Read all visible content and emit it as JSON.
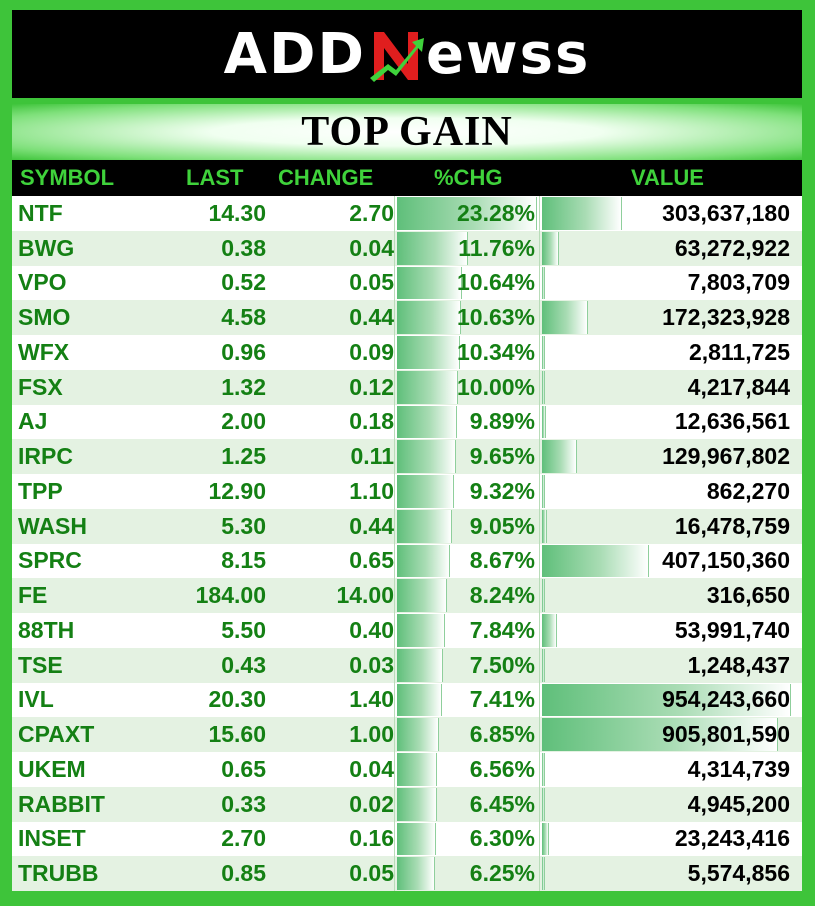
{
  "brand": {
    "logo_text_left": "ADD",
    "logo_text_right": "ewss",
    "logo_mark": "N-arrow-icon"
  },
  "title": "TOP GAIN",
  "headers": {
    "symbol": "SYMBOL",
    "last": "LAST",
    "change": "CHANGE",
    "pct": "%CHG",
    "value": "VALUE"
  },
  "colors": {
    "brand_green": "#3ec43a",
    "text_green": "#148014",
    "header_bg": "#000000"
  },
  "value_max": 954243660,
  "pct_max": 23.28,
  "rows": [
    {
      "symbol": "NTF",
      "last": "14.30",
      "change": "2.70",
      "pct": "23.28%",
      "pct_num": 23.28,
      "value": "303,637,180",
      "value_num": 303637180
    },
    {
      "symbol": "BWG",
      "last": "0.38",
      "change": "0.04",
      "pct": "11.76%",
      "pct_num": 11.76,
      "value": "63,272,922",
      "value_num": 63272922
    },
    {
      "symbol": "VPO",
      "last": "0.52",
      "change": "0.05",
      "pct": "10.64%",
      "pct_num": 10.64,
      "value": "7,803,709",
      "value_num": 7803709
    },
    {
      "symbol": "SMO",
      "last": "4.58",
      "change": "0.44",
      "pct": "10.63%",
      "pct_num": 10.63,
      "value": "172,323,928",
      "value_num": 172323928
    },
    {
      "symbol": "WFX",
      "last": "0.96",
      "change": "0.09",
      "pct": "10.34%",
      "pct_num": 10.34,
      "value": "2,811,725",
      "value_num": 2811725
    },
    {
      "symbol": "FSX",
      "last": "1.32",
      "change": "0.12",
      "pct": "10.00%",
      "pct_num": 10.0,
      "value": "4,217,844",
      "value_num": 4217844
    },
    {
      "symbol": "AJ",
      "last": "2.00",
      "change": "0.18",
      "pct": "9.89%",
      "pct_num": 9.89,
      "value": "12,636,561",
      "value_num": 12636561
    },
    {
      "symbol": "IRPC",
      "last": "1.25",
      "change": "0.11",
      "pct": "9.65%",
      "pct_num": 9.65,
      "value": "129,967,802",
      "value_num": 129967802
    },
    {
      "symbol": "TPP",
      "last": "12.90",
      "change": "1.10",
      "pct": "9.32%",
      "pct_num": 9.32,
      "value": "862,270",
      "value_num": 862270
    },
    {
      "symbol": "WASH",
      "last": "5.30",
      "change": "0.44",
      "pct": "9.05%",
      "pct_num": 9.05,
      "value": "16,478,759",
      "value_num": 16478759
    },
    {
      "symbol": "SPRC",
      "last": "8.15",
      "change": "0.65",
      "pct": "8.67%",
      "pct_num": 8.67,
      "value": "407,150,360",
      "value_num": 407150360
    },
    {
      "symbol": "FE",
      "last": "184.00",
      "change": "14.00",
      "pct": "8.24%",
      "pct_num": 8.24,
      "value": "316,650",
      "value_num": 316650
    },
    {
      "symbol": "88TH",
      "last": "5.50",
      "change": "0.40",
      "pct": "7.84%",
      "pct_num": 7.84,
      "value": "53,991,740",
      "value_num": 53991740
    },
    {
      "symbol": "TSE",
      "last": "0.43",
      "change": "0.03",
      "pct": "7.50%",
      "pct_num": 7.5,
      "value": "1,248,437",
      "value_num": 1248437
    },
    {
      "symbol": "IVL",
      "last": "20.30",
      "change": "1.40",
      "pct": "7.41%",
      "pct_num": 7.41,
      "value": "954,243,660",
      "value_num": 954243660
    },
    {
      "symbol": "CPAXT",
      "last": "15.60",
      "change": "1.00",
      "pct": "6.85%",
      "pct_num": 6.85,
      "value": "905,801,590",
      "value_num": 905801590
    },
    {
      "symbol": "UKEM",
      "last": "0.65",
      "change": "0.04",
      "pct": "6.56%",
      "pct_num": 6.56,
      "value": "4,314,739",
      "value_num": 4314739
    },
    {
      "symbol": "RABBIT",
      "last": "0.33",
      "change": "0.02",
      "pct": "6.45%",
      "pct_num": 6.45,
      "value": "4,945,200",
      "value_num": 4945200
    },
    {
      "symbol": "INSET",
      "last": "2.70",
      "change": "0.16",
      "pct": "6.30%",
      "pct_num": 6.3,
      "value": "23,243,416",
      "value_num": 23243416
    },
    {
      "symbol": "TRUBB",
      "last": "0.85",
      "change": "0.05",
      "pct": "6.25%",
      "pct_num": 6.25,
      "value": "5,574,856",
      "value_num": 5574856
    }
  ]
}
